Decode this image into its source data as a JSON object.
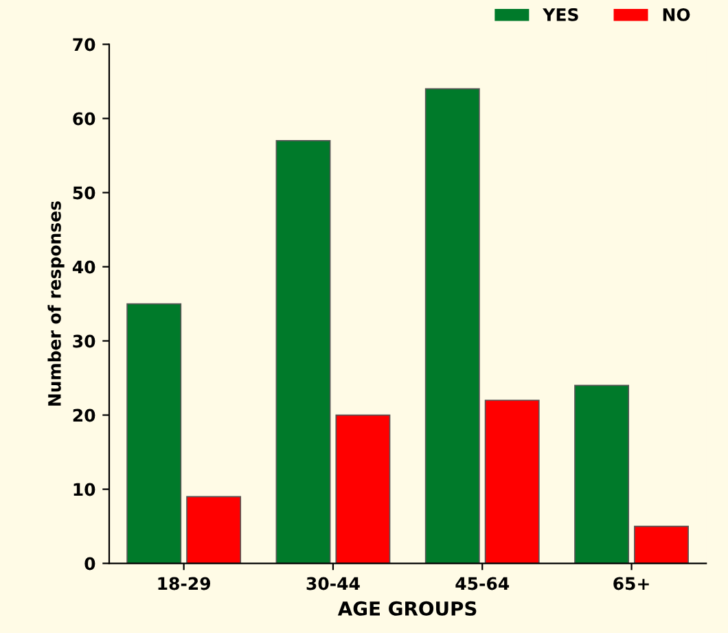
{
  "chart_data": {
    "type": "bar",
    "xlabel": "AGE GROUPS",
    "ylabel": "Number of responses",
    "categories": [
      "18-29",
      "30-44",
      "45-64",
      "65+"
    ],
    "series": [
      {
        "name": "YES",
        "color": "#007a2a",
        "values": [
          35,
          57,
          64,
          24
        ]
      },
      {
        "name": "NO",
        "color": "#ff0000",
        "values": [
          9,
          20,
          22,
          5
        ]
      }
    ],
    "ylim": [
      0,
      70
    ],
    "yticks": [
      0,
      10,
      20,
      30,
      40,
      50,
      60,
      70
    ],
    "grid": false,
    "legend": "top right"
  }
}
